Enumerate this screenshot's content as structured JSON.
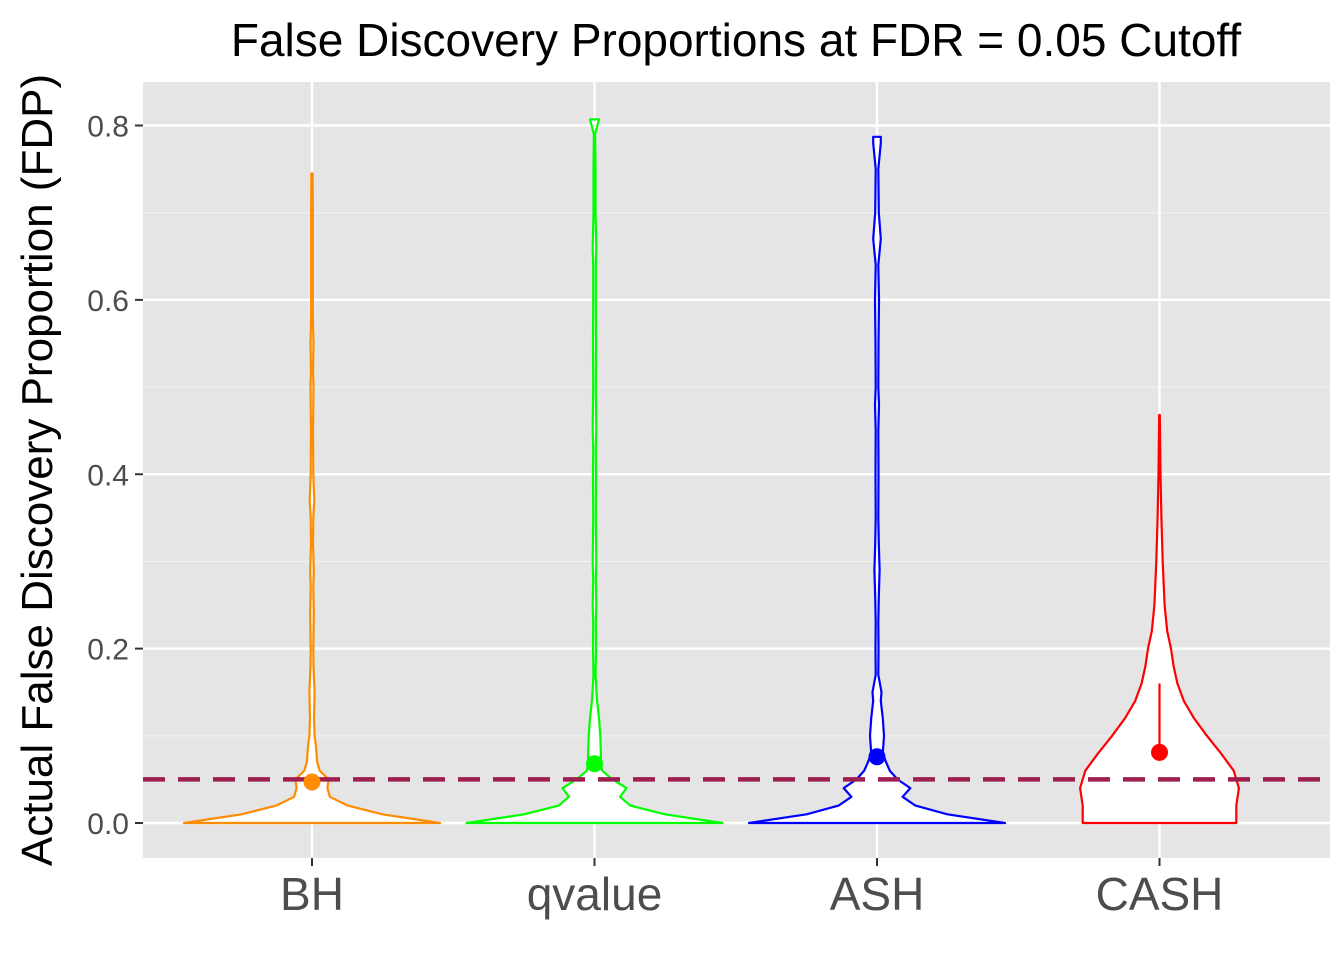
{
  "chart_data": {
    "type": "violin",
    "title": "False Discovery Proportions at FDR = 0.05 Cutoff",
    "xlabel": "",
    "ylabel": "Actual False Discovery Proportion (FDP)",
    "ylim": [
      -0.04,
      0.85
    ],
    "yticks": [
      "0.0",
      "0.2",
      "0.4",
      "0.6",
      "0.8"
    ],
    "ytick_values": [
      0.0,
      0.2,
      0.4,
      0.6,
      0.8
    ],
    "categories": [
      "BH",
      "qvalue",
      "ASH",
      "CASH"
    ],
    "reference_line": {
      "y": 0.05,
      "style": "dashed",
      "color": "#9e1f4f"
    },
    "grid": true,
    "panel_background": "#e5e5e5",
    "series": [
      {
        "category": "BH",
        "color": "#ff8c00",
        "point": 0.047,
        "range": [
          0.0,
          0.745
        ],
        "density_profile": [
          [
            0.0,
            1.0
          ],
          [
            0.01,
            0.55
          ],
          [
            0.02,
            0.28
          ],
          [
            0.03,
            0.14
          ],
          [
            0.04,
            0.12
          ],
          [
            0.05,
            0.13
          ],
          [
            0.06,
            0.06
          ],
          [
            0.07,
            0.04
          ],
          [
            0.08,
            0.035
          ],
          [
            0.09,
            0.03
          ],
          [
            0.1,
            0.02
          ],
          [
            0.12,
            0.016
          ],
          [
            0.15,
            0.02
          ],
          [
            0.18,
            0.012
          ],
          [
            0.2,
            0.01
          ],
          [
            0.24,
            0.014
          ],
          [
            0.27,
            0.01
          ],
          [
            0.29,
            0.014
          ],
          [
            0.32,
            0.008
          ],
          [
            0.35,
            0.01
          ],
          [
            0.37,
            0.018
          ],
          [
            0.4,
            0.01
          ],
          [
            0.45,
            0.008
          ],
          [
            0.5,
            0.012
          ],
          [
            0.52,
            0.008
          ],
          [
            0.55,
            0.012
          ],
          [
            0.58,
            0.006
          ],
          [
            0.62,
            0.006
          ],
          [
            0.7,
            0.006
          ],
          [
            0.745,
            0.005
          ]
        ]
      },
      {
        "category": "qvalue",
        "color": "#00ff00",
        "point": 0.068,
        "range": [
          0.0,
          0.807
        ],
        "density_profile": [
          [
            0.0,
            1.0
          ],
          [
            0.01,
            0.55
          ],
          [
            0.02,
            0.28
          ],
          [
            0.03,
            0.2
          ],
          [
            0.04,
            0.25
          ],
          [
            0.05,
            0.14
          ],
          [
            0.06,
            0.06
          ],
          [
            0.07,
            0.05
          ],
          [
            0.08,
            0.05
          ],
          [
            0.1,
            0.045
          ],
          [
            0.12,
            0.035
          ],
          [
            0.14,
            0.02
          ],
          [
            0.15,
            0.016
          ],
          [
            0.17,
            0.008
          ],
          [
            0.2,
            0.012
          ],
          [
            0.23,
            0.01
          ],
          [
            0.25,
            0.014
          ],
          [
            0.28,
            0.01
          ],
          [
            0.3,
            0.014
          ],
          [
            0.35,
            0.01
          ],
          [
            0.4,
            0.012
          ],
          [
            0.43,
            0.01
          ],
          [
            0.45,
            0.014
          ],
          [
            0.5,
            0.01
          ],
          [
            0.55,
            0.012
          ],
          [
            0.6,
            0.01
          ],
          [
            0.64,
            0.01
          ],
          [
            0.66,
            0.014
          ],
          [
            0.7,
            0.008
          ],
          [
            0.75,
            0.008
          ],
          [
            0.79,
            0.005
          ],
          [
            0.807,
            0.035
          ]
        ]
      },
      {
        "category": "ASH",
        "color": "#0000ff",
        "point": 0.076,
        "range": [
          0.0,
          0.787
        ],
        "density_profile": [
          [
            0.0,
            1.0
          ],
          [
            0.01,
            0.55
          ],
          [
            0.02,
            0.3
          ],
          [
            0.03,
            0.2
          ],
          [
            0.04,
            0.26
          ],
          [
            0.05,
            0.16
          ],
          [
            0.06,
            0.1
          ],
          [
            0.07,
            0.07
          ],
          [
            0.08,
            0.045
          ],
          [
            0.1,
            0.055
          ],
          [
            0.12,
            0.045
          ],
          [
            0.14,
            0.03
          ],
          [
            0.15,
            0.035
          ],
          [
            0.17,
            0.01
          ],
          [
            0.2,
            0.012
          ],
          [
            0.23,
            0.01
          ],
          [
            0.26,
            0.014
          ],
          [
            0.29,
            0.02
          ],
          [
            0.32,
            0.014
          ],
          [
            0.35,
            0.01
          ],
          [
            0.4,
            0.012
          ],
          [
            0.45,
            0.01
          ],
          [
            0.48,
            0.016
          ],
          [
            0.5,
            0.01
          ],
          [
            0.55,
            0.012
          ],
          [
            0.6,
            0.016
          ],
          [
            0.64,
            0.01
          ],
          [
            0.67,
            0.03
          ],
          [
            0.7,
            0.014
          ],
          [
            0.75,
            0.01
          ],
          [
            0.78,
            0.03
          ],
          [
            0.787,
            0.03
          ]
        ]
      },
      {
        "category": "CASH",
        "color": "#ff0000",
        "point": 0.081,
        "range": [
          0.0,
          0.468
        ],
        "whisker_top": 0.16,
        "density_profile": [
          [
            0.0,
            0.6
          ],
          [
            0.02,
            0.6
          ],
          [
            0.04,
            0.62
          ],
          [
            0.06,
            0.58
          ],
          [
            0.08,
            0.48
          ],
          [
            0.1,
            0.37
          ],
          [
            0.12,
            0.27
          ],
          [
            0.14,
            0.19
          ],
          [
            0.16,
            0.14
          ],
          [
            0.18,
            0.11
          ],
          [
            0.2,
            0.09
          ],
          [
            0.22,
            0.06
          ],
          [
            0.25,
            0.04
          ],
          [
            0.3,
            0.025
          ],
          [
            0.35,
            0.015
          ],
          [
            0.4,
            0.008
          ],
          [
            0.45,
            0.004
          ],
          [
            0.468,
            0.002
          ]
        ]
      }
    ]
  }
}
